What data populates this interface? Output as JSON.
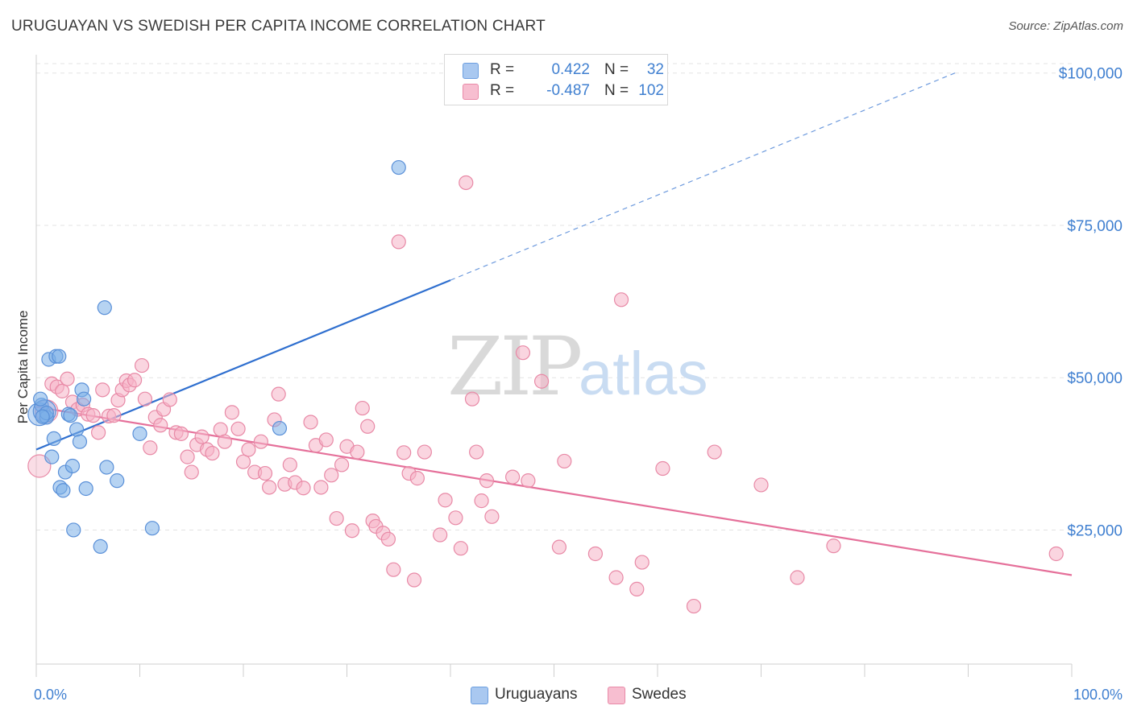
{
  "title": "URUGUAYAN VS SWEDISH PER CAPITA INCOME CORRELATION CHART",
  "source": "Source: ZipAtlas.com",
  "watermark": {
    "zip": "ZIP",
    "atlas": "atlas"
  },
  "legend": {
    "rows": [
      {
        "r_label": "R =",
        "r_value": "0.422",
        "n_label": "N =",
        "n_value": "32",
        "color": "#a9c8f0",
        "border": "#6d9fe0"
      },
      {
        "r_label": "R =",
        "r_value": "-0.487",
        "n_label": "N =",
        "n_value": "102",
        "color": "#f7bed0",
        "border": "#e98aa8"
      }
    ]
  },
  "bottom_legend": [
    {
      "label": "Uruguayans",
      "color": "#a9c8f0",
      "border": "#6d9fe0"
    },
    {
      "label": "Swedes",
      "color": "#f7bed0",
      "border": "#e98aa8"
    }
  ],
  "chart_data": {
    "type": "scatter",
    "title": "URUGUAYAN VS SWEDISH PER CAPITA INCOME CORRELATION CHART",
    "xlabel": "",
    "ylabel": "Per Capita Income",
    "x_tick_labels": [
      "0.0%",
      "100.0%"
    ],
    "y_tick_labels": [
      "$25,000",
      "$50,000",
      "$75,000",
      "$100,000"
    ],
    "y_ticks": [
      25000,
      50000,
      75000,
      100000
    ],
    "xlim": [
      0,
      100
    ],
    "ylim": [
      3000,
      103000
    ],
    "grid": true,
    "legend_placement": "top-center",
    "series": [
      {
        "name": "Uruguayans",
        "color": "#7aaee8",
        "edge": "#5a90d8",
        "trend": {
          "x0": 0,
          "y0": 38200,
          "x1": 40,
          "y1": 66000,
          "x_dash_end": 89,
          "y_dash_end": 100200,
          "color": "#2f6fcf"
        },
        "points": [
          [
            0.3,
            44000
          ],
          [
            0.5,
            45500
          ],
          [
            0.8,
            44500
          ],
          [
            1.0,
            43500
          ],
          [
            1.2,
            53000
          ],
          [
            1.5,
            37000
          ],
          [
            1.7,
            40000
          ],
          [
            1.9,
            53500
          ],
          [
            2.2,
            53500
          ],
          [
            2.3,
            32000
          ],
          [
            2.6,
            31500
          ],
          [
            2.8,
            34500
          ],
          [
            3.1,
            44000
          ],
          [
            3.3,
            43800
          ],
          [
            3.5,
            35500
          ],
          [
            3.6,
            25000
          ],
          [
            3.9,
            41500
          ],
          [
            4.2,
            39500
          ],
          [
            4.4,
            48000
          ],
          [
            4.6,
            46500
          ],
          [
            4.8,
            31800
          ],
          [
            6.2,
            22300
          ],
          [
            6.6,
            61500
          ],
          [
            6.8,
            35300
          ],
          [
            7.8,
            33100
          ],
          [
            10.0,
            40800
          ],
          [
            11.2,
            25300
          ],
          [
            23.5,
            41700
          ],
          [
            35.0,
            84500
          ],
          [
            0.4,
            46500
          ],
          [
            1.0,
            44200
          ],
          [
            0.6,
            43600
          ]
        ]
      },
      {
        "name": "Swedes",
        "color": "#f5b3c7",
        "edge": "#e889a6",
        "trend": {
          "x0": 0,
          "y0": 45200,
          "x1": 100,
          "y1": 17600,
          "color": "#e5709a"
        },
        "points": [
          [
            0.3,
            35500
          ],
          [
            1.0,
            44500
          ],
          [
            1.5,
            49000
          ],
          [
            2.0,
            48500
          ],
          [
            2.5,
            47800
          ],
          [
            3.0,
            49800
          ],
          [
            3.5,
            46000
          ],
          [
            4.0,
            44800
          ],
          [
            4.5,
            45500
          ],
          [
            5.0,
            44000
          ],
          [
            5.5,
            43800
          ],
          [
            6.0,
            41000
          ],
          [
            6.4,
            48000
          ],
          [
            7.0,
            43700
          ],
          [
            7.5,
            43800
          ],
          [
            7.9,
            46300
          ],
          [
            8.3,
            48000
          ],
          [
            8.7,
            49500
          ],
          [
            9.0,
            48800
          ],
          [
            9.5,
            49600
          ],
          [
            10.2,
            52000
          ],
          [
            10.5,
            46500
          ],
          [
            11.0,
            38500
          ],
          [
            11.5,
            43500
          ],
          [
            12.0,
            42200
          ],
          [
            12.3,
            44800
          ],
          [
            12.9,
            46400
          ],
          [
            13.5,
            41000
          ],
          [
            14.0,
            40800
          ],
          [
            14.6,
            37000
          ],
          [
            15.0,
            34500
          ],
          [
            15.5,
            39000
          ],
          [
            16.0,
            40300
          ],
          [
            16.5,
            38200
          ],
          [
            17.0,
            37600
          ],
          [
            17.8,
            41500
          ],
          [
            18.2,
            39500
          ],
          [
            18.9,
            44300
          ],
          [
            19.5,
            41600
          ],
          [
            20.0,
            36200
          ],
          [
            20.5,
            38200
          ],
          [
            21.1,
            34500
          ],
          [
            21.7,
            39500
          ],
          [
            22.1,
            34300
          ],
          [
            22.5,
            32000
          ],
          [
            23.0,
            43100
          ],
          [
            23.4,
            47300
          ],
          [
            24.0,
            32500
          ],
          [
            24.5,
            35700
          ],
          [
            25.0,
            32800
          ],
          [
            25.8,
            31900
          ],
          [
            26.5,
            42700
          ],
          [
            27.0,
            38900
          ],
          [
            27.5,
            32000
          ],
          [
            28.0,
            39800
          ],
          [
            28.5,
            34000
          ],
          [
            29.0,
            26900
          ],
          [
            29.5,
            35700
          ],
          [
            30.0,
            38700
          ],
          [
            30.5,
            24900
          ],
          [
            31.0,
            37800
          ],
          [
            31.5,
            45000
          ],
          [
            32.0,
            42000
          ],
          [
            32.5,
            26500
          ],
          [
            32.8,
            25600
          ],
          [
            33.5,
            24500
          ],
          [
            34.0,
            23500
          ],
          [
            34.5,
            18500
          ],
          [
            35.0,
            72300
          ],
          [
            35.5,
            37700
          ],
          [
            36.0,
            34300
          ],
          [
            36.5,
            16800
          ],
          [
            36.8,
            33500
          ],
          [
            37.5,
            37800
          ],
          [
            39.0,
            24200
          ],
          [
            39.5,
            29900
          ],
          [
            40.5,
            27000
          ],
          [
            41.0,
            22000
          ],
          [
            41.5,
            82000
          ],
          [
            42.1,
            46500
          ],
          [
            42.5,
            37800
          ],
          [
            43.0,
            29800
          ],
          [
            43.5,
            33100
          ],
          [
            44.0,
            27200
          ],
          [
            46.0,
            33700
          ],
          [
            47.0,
            54100
          ],
          [
            47.5,
            33100
          ],
          [
            48.8,
            49400
          ],
          [
            50.5,
            22200
          ],
          [
            51.0,
            36300
          ],
          [
            54.0,
            21100
          ],
          [
            56.0,
            17200
          ],
          [
            56.5,
            62800
          ],
          [
            58.0,
            15300
          ],
          [
            58.5,
            19700
          ],
          [
            60.5,
            35100
          ],
          [
            63.5,
            12500
          ],
          [
            65.5,
            37800
          ],
          [
            70.0,
            32400
          ],
          [
            73.5,
            17200
          ],
          [
            77.0,
            22400
          ],
          [
            98.5,
            21100
          ]
        ]
      }
    ]
  }
}
